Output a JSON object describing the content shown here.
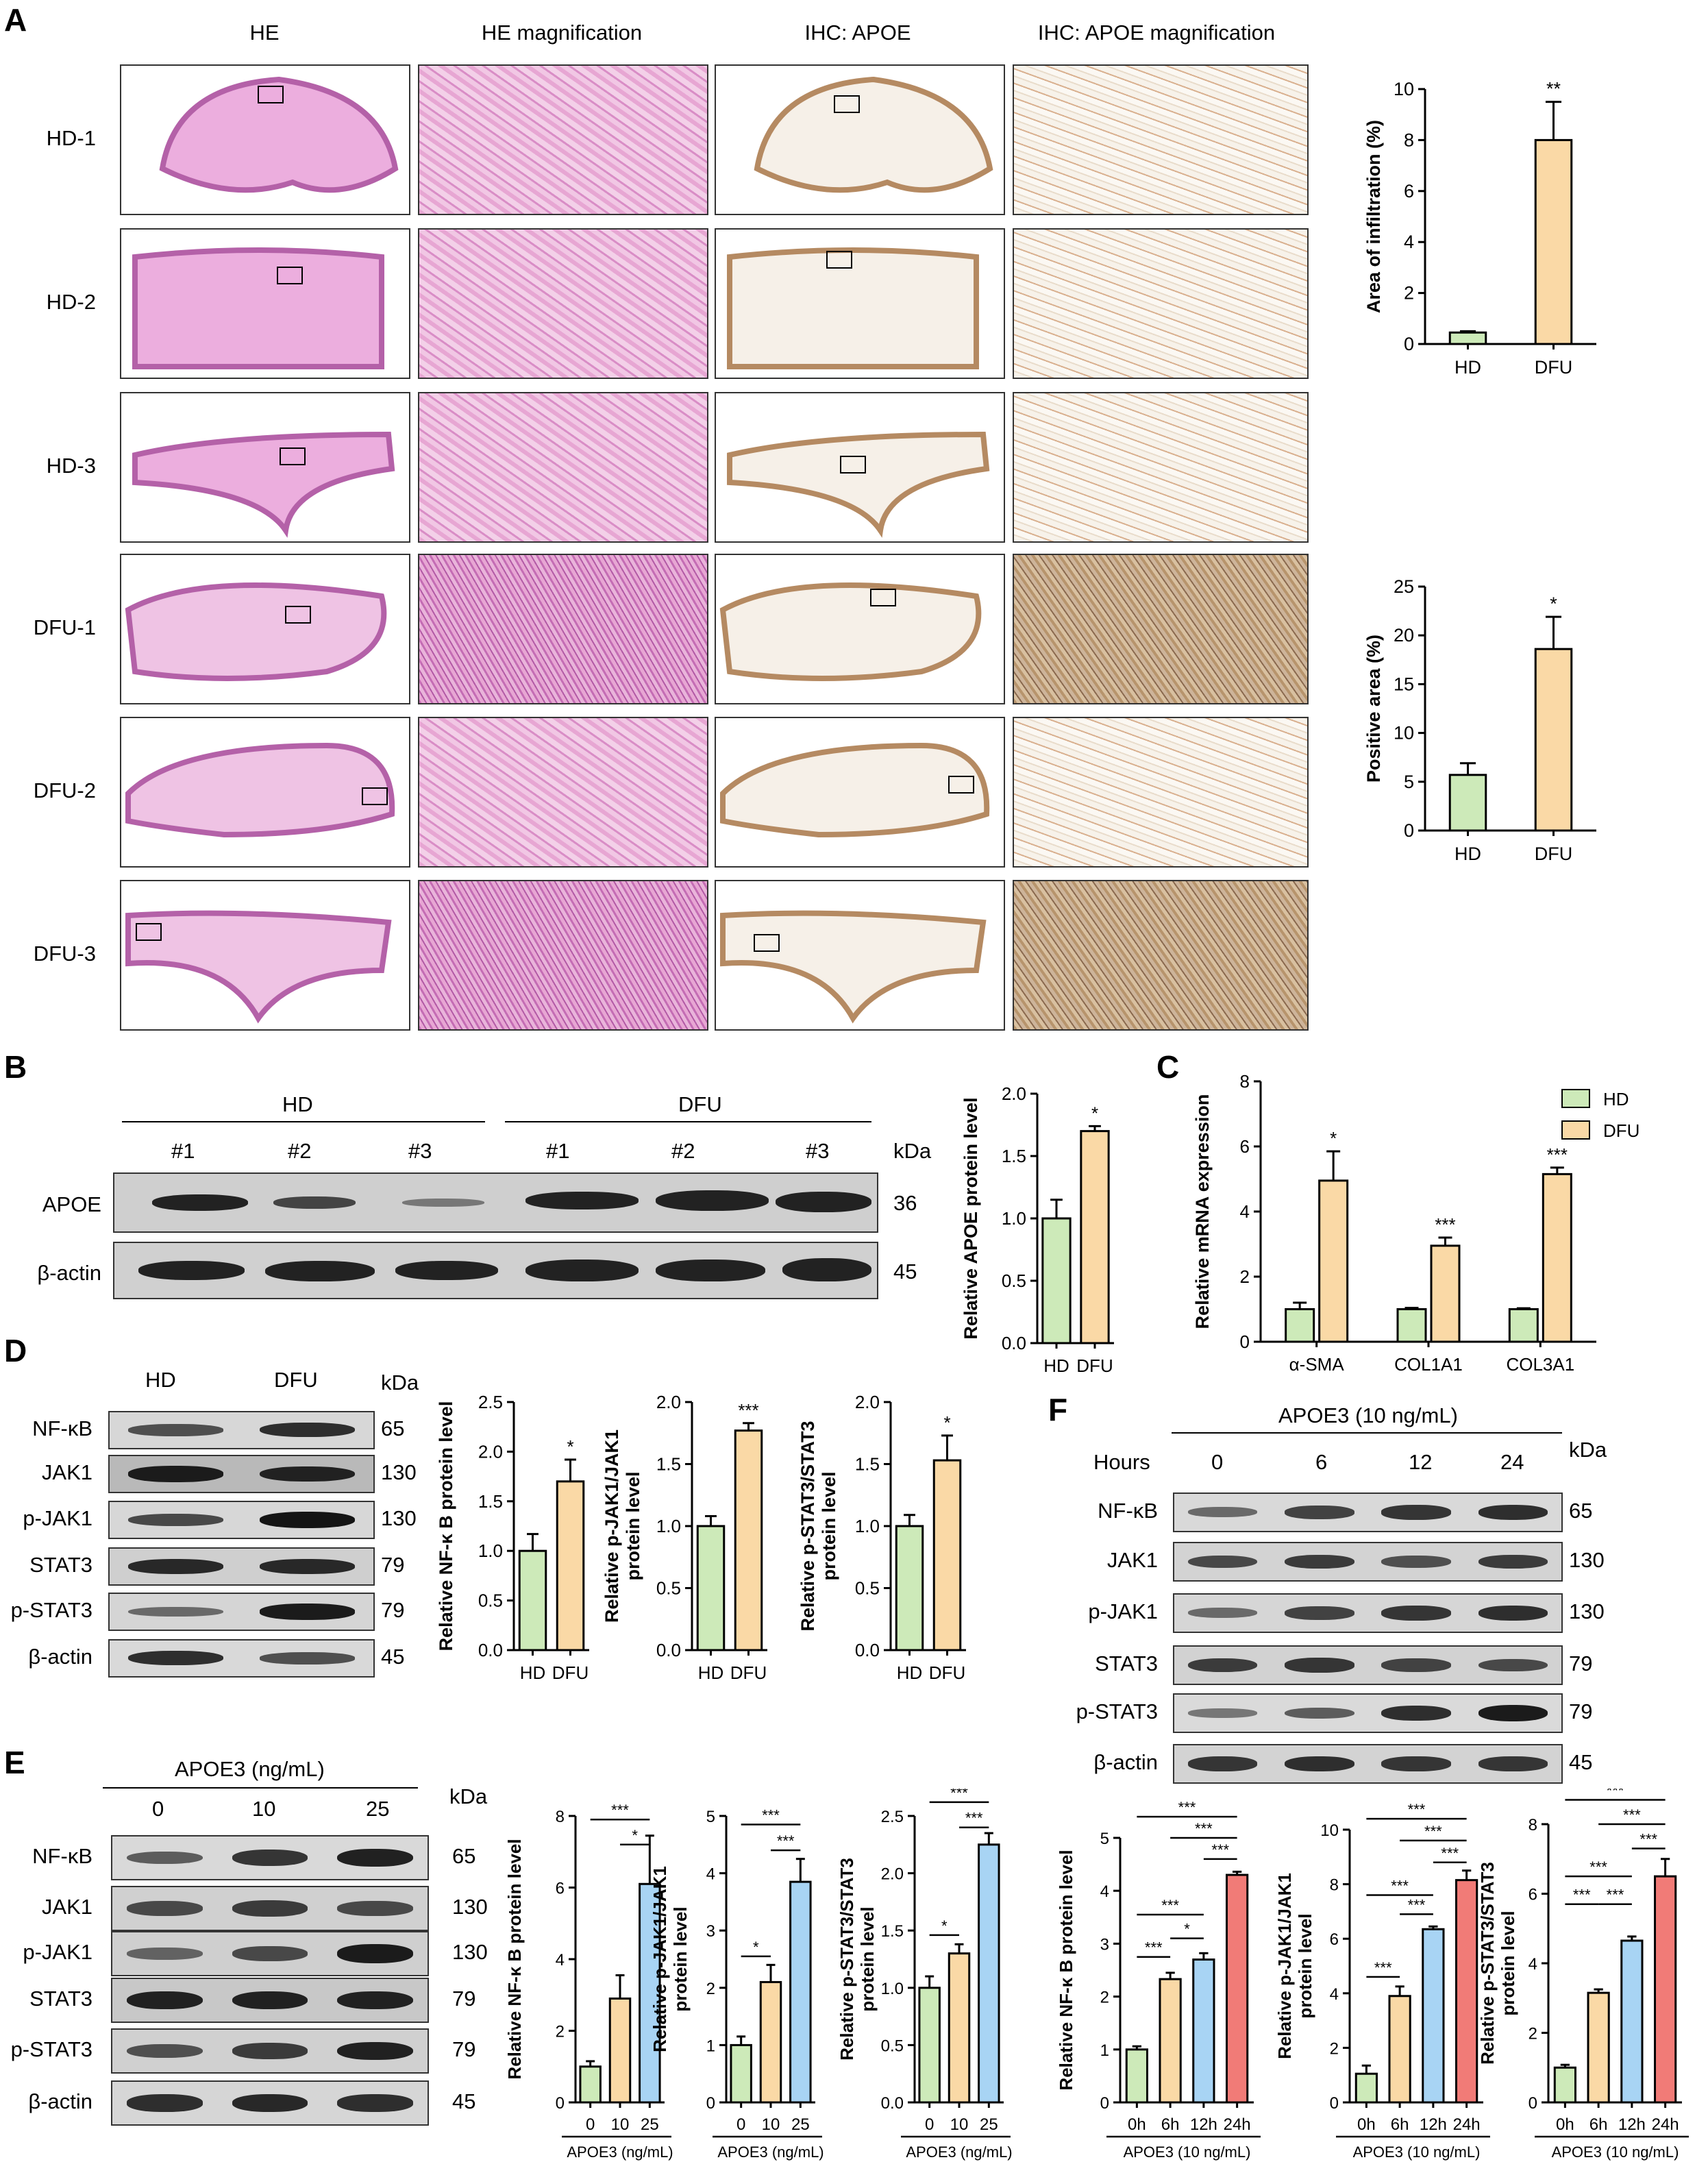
{
  "panelA": {
    "letter": "A",
    "col_titles": [
      "HE",
      "HE  magnification",
      "IHC: APOE",
      "IHC: APOE  magnification"
    ],
    "row_labels": [
      "HD-1",
      "HD-2",
      "HD-3",
      "DFU-1",
      "DFU-2",
      "DFU-3"
    ]
  },
  "panelB": {
    "letter": "B",
    "group_labels": [
      "HD",
      "DFU"
    ],
    "lanes": [
      "#1",
      "#2",
      "#3",
      "#1",
      "#2",
      "#3"
    ],
    "kda_header": "kDa",
    "rows": [
      {
        "label": "APOE",
        "kda": "36"
      },
      {
        "label": "β-actin",
        "kda": "45"
      }
    ]
  },
  "panelC": {
    "letter": "C"
  },
  "panelD": {
    "letter": "D",
    "group_labels": [
      "HD",
      "DFU"
    ],
    "kda_header": "kDa",
    "rows": [
      {
        "label": "NF-κB",
        "kda": "65"
      },
      {
        "label": "JAK1",
        "kda": "130"
      },
      {
        "label": "p-JAK1",
        "kda": "130"
      },
      {
        "label": "STAT3",
        "kda": "79"
      },
      {
        "label": "p-STAT3",
        "kda": "79"
      },
      {
        "label": "β-actin",
        "kda": "45"
      }
    ]
  },
  "panelE": {
    "letter": "E",
    "treatment": "APOE3 (ng/mL)",
    "doses": [
      "0",
      "10",
      "25"
    ],
    "kda_header": "kDa",
    "rows": [
      {
        "label": "NF-κB",
        "kda": "65"
      },
      {
        "label": "JAK1",
        "kda": "130"
      },
      {
        "label": "p-JAK1",
        "kda": "130"
      },
      {
        "label": "STAT3",
        "kda": "79"
      },
      {
        "label": "p-STAT3",
        "kda": "79"
      },
      {
        "label": "β-actin",
        "kda": "45"
      }
    ]
  },
  "panelF": {
    "letter": "F",
    "treatment": "APOE3 (10 ng/mL)",
    "hours_label": "Hours",
    "hours": [
      "0",
      "6",
      "12",
      "24"
    ],
    "kda_header": "kDa",
    "rows": [
      {
        "label": "NF-κB",
        "kda": "65"
      },
      {
        "label": "JAK1",
        "kda": "130"
      },
      {
        "label": "p-JAK1",
        "kda": "130"
      },
      {
        "label": "STAT3",
        "kda": "79"
      },
      {
        "label": "p-STAT3",
        "kda": "79"
      },
      {
        "label": "β-actin",
        "kda": "45"
      }
    ]
  },
  "colors": {
    "HD": "#cdeab9",
    "DFU": "#fad9a6",
    "dose25": "#a8d4f4",
    "h24": "#f17b77"
  },
  "chart_data": [
    {
      "id": "A-infiltration",
      "type": "bar",
      "categories": [
        "HD",
        "DFU"
      ],
      "values": [
        0.45,
        8.0
      ],
      "errors": [
        0.05,
        1.5
      ],
      "ylabel": "Area of infiltration (%)",
      "ylim": [
        0,
        10
      ],
      "yticks": [
        0,
        2,
        4,
        6,
        8,
        10
      ],
      "sig": [
        "",
        "**"
      ],
      "colors": [
        "#cdeab9",
        "#fad9a6"
      ]
    },
    {
      "id": "A-positive",
      "type": "bar",
      "categories": [
        "HD",
        "DFU"
      ],
      "values": [
        5.7,
        18.6
      ],
      "errors": [
        1.2,
        3.3
      ],
      "ylabel": "Positive area (%)",
      "ylim": [
        0,
        25
      ],
      "yticks": [
        0,
        5,
        10,
        15,
        20,
        25
      ],
      "sig": [
        "",
        "*"
      ],
      "colors": [
        "#cdeab9",
        "#fad9a6"
      ]
    },
    {
      "id": "B-apoe",
      "type": "bar",
      "categories": [
        "HD",
        "DFU"
      ],
      "values": [
        1.0,
        1.7
      ],
      "errors": [
        0.15,
        0.04
      ],
      "ylabel": "Relative APOE protein level",
      "ylim": [
        0,
        2.0
      ],
      "yticks": [
        "0.0",
        "0.5",
        "1.0",
        "1.5",
        "2.0"
      ],
      "sig": [
        "",
        "*"
      ],
      "colors": [
        "#cdeab9",
        "#fad9a6"
      ]
    },
    {
      "id": "C-mrna",
      "type": "bar",
      "categories": [
        "α-SMA",
        "COL1A1",
        "COL3A1"
      ],
      "series": [
        {
          "name": "HD",
          "values": [
            1.0,
            1.0,
            1.0
          ],
          "errors": [
            0.2,
            0.04,
            0.03
          ]
        },
        {
          "name": "DFU",
          "values": [
            4.95,
            2.95,
            5.15
          ],
          "errors": [
            0.9,
            0.25,
            0.2
          ]
        }
      ],
      "ylabel": "Relative mRNA expression",
      "ylim": [
        0,
        8
      ],
      "yticks": [
        0,
        2,
        4,
        6,
        8
      ],
      "sig": [
        "*",
        "***",
        "***"
      ],
      "colors": [
        "#cdeab9",
        "#fad9a6"
      ]
    },
    {
      "id": "D-nfkb",
      "type": "bar",
      "categories": [
        "HD",
        "DFU"
      ],
      "values": [
        1.0,
        1.7
      ],
      "errors": [
        0.17,
        0.22
      ],
      "ylabel": "Relative NF-κ B protein level",
      "ylim": [
        0,
        2.5
      ],
      "yticks": [
        "0.0",
        "0.5",
        "1.0",
        "1.5",
        "2.0",
        "2.5"
      ],
      "sig": [
        "",
        "*"
      ],
      "colors": [
        "#cdeab9",
        "#fad9a6"
      ]
    },
    {
      "id": "D-pjak1",
      "type": "bar",
      "categories": [
        "HD",
        "DFU"
      ],
      "values": [
        1.0,
        1.77
      ],
      "errors": [
        0.08,
        0.06
      ],
      "ylabel": [
        "Relative p-JAK1/JAK1",
        "protein level"
      ],
      "ylim": [
        0,
        2.0
      ],
      "yticks": [
        "0.0",
        "0.5",
        "1.0",
        "1.5",
        "2.0"
      ],
      "sig": [
        "",
        "***"
      ],
      "colors": [
        "#cdeab9",
        "#fad9a6"
      ]
    },
    {
      "id": "D-pstat3",
      "type": "bar",
      "categories": [
        "HD",
        "DFU"
      ],
      "values": [
        1.0,
        1.53
      ],
      "errors": [
        0.09,
        0.2
      ],
      "ylabel": [
        "Relative p-STAT3/STAT3",
        "protein level"
      ],
      "ylim": [
        0,
        2.0
      ],
      "yticks": [
        "0.0",
        "0.5",
        "1.0",
        "1.5",
        "2.0"
      ],
      "sig": [
        "",
        "*"
      ],
      "colors": [
        "#cdeab9",
        "#fad9a6"
      ]
    },
    {
      "id": "E-nfkb",
      "type": "bar",
      "categories": [
        "0",
        "10",
        "25"
      ],
      "values": [
        1.0,
        2.9,
        6.1
      ],
      "errors": [
        0.15,
        0.65,
        1.35
      ],
      "ylabel": "Relative NF-κ B protein level",
      "xlabel": "APOE3 (ng/mL)",
      "ylim": [
        0,
        8
      ],
      "yticks": [
        0,
        2,
        4,
        6,
        8
      ],
      "brackets": [
        {
          "from": 1,
          "to": 2,
          "level": 7.2,
          "label": "*"
        },
        {
          "from": 0,
          "to": 2,
          "level": 7.9,
          "label": "***"
        }
      ],
      "colors": [
        "#cdeab9",
        "#fad9a6",
        "#a8d4f4"
      ]
    },
    {
      "id": "E-pjak1",
      "type": "bar",
      "categories": [
        "0",
        "10",
        "25"
      ],
      "values": [
        1.0,
        2.1,
        3.85
      ],
      "errors": [
        0.15,
        0.3,
        0.4
      ],
      "ylabel": [
        "Relative p-JAK1/JAK1",
        "protein level"
      ],
      "xlabel": "APOE3 (ng/mL)",
      "ylim": [
        0,
        5
      ],
      "yticks": [
        0,
        1,
        2,
        3,
        4,
        5
      ],
      "brackets": [
        {
          "from": 0,
          "to": 1,
          "level": 2.55,
          "label": "*"
        },
        {
          "from": 1,
          "to": 2,
          "level": 4.4,
          "label": "***"
        },
        {
          "from": 0,
          "to": 2,
          "level": 4.85,
          "label": "***"
        }
      ],
      "colors": [
        "#cdeab9",
        "#fad9a6",
        "#a8d4f4"
      ]
    },
    {
      "id": "E-pstat3",
      "type": "bar",
      "categories": [
        "0",
        "10",
        "25"
      ],
      "values": [
        1.0,
        1.3,
        2.25
      ],
      "errors": [
        0.1,
        0.08,
        0.1
      ],
      "ylabel": "Relative p-STAT3/STAT3",
      "ylabel2": "protein level",
      "xlabel": "APOE3 (ng/mL)",
      "ylim": [
        0,
        2.5
      ],
      "yticks": [
        "0.0",
        "0.5",
        "1.0",
        "1.5",
        "2.0",
        "2.5"
      ],
      "brackets": [
        {
          "from": 0,
          "to": 1,
          "level": 1.46,
          "label": "*"
        },
        {
          "from": 1,
          "to": 2,
          "level": 2.4,
          "label": "***"
        },
        {
          "from": 0,
          "to": 2,
          "level": 2.62,
          "label": "***"
        }
      ],
      "colors": [
        "#cdeab9",
        "#fad9a6",
        "#a8d4f4"
      ]
    },
    {
      "id": "F-nfkb",
      "type": "bar",
      "categories": [
        "0h",
        "6h",
        "12h",
        "24h"
      ],
      "values": [
        1.0,
        2.33,
        2.7,
        4.3
      ],
      "errors": [
        0.06,
        0.12,
        0.12,
        0.06
      ],
      "ylabel": "Relative NF-κ B protein level",
      "xlabel": "APOE3 (10 ng/mL)",
      "ylim": [
        0,
        5
      ],
      "yticks": [
        0,
        1,
        2,
        3,
        4,
        5
      ],
      "brackets": [
        {
          "from": 0,
          "to": 1,
          "level": 2.75,
          "label": "***"
        },
        {
          "from": 1,
          "to": 2,
          "level": 3.1,
          "label": "*"
        },
        {
          "from": 0,
          "to": 2,
          "level": 3.55,
          "label": "***"
        },
        {
          "from": 2,
          "to": 3,
          "level": 4.6,
          "label": "***"
        },
        {
          "from": 1,
          "to": 3,
          "level": 5.0,
          "label": "***"
        },
        {
          "from": 0,
          "to": 3,
          "level": 5.4,
          "label": "***"
        }
      ],
      "colors": [
        "#cdeab9",
        "#fad9a6",
        "#a8d4f4",
        "#f17b77"
      ]
    },
    {
      "id": "F-pjak1",
      "type": "bar",
      "categories": [
        "0h",
        "6h",
        "12h",
        "24h"
      ],
      "values": [
        1.05,
        3.9,
        6.35,
        8.15
      ],
      "errors": [
        0.3,
        0.35,
        0.1,
        0.35
      ],
      "ylabel": [
        "Relative p-JAK1/JAK1",
        "protein level"
      ],
      "xlabel": "APOE3 (10 ng/mL)",
      "ylim": [
        0,
        10
      ],
      "yticks": [
        0,
        2,
        4,
        6,
        8,
        10
      ],
      "brackets": [
        {
          "from": 0,
          "to": 1,
          "level": 4.6,
          "label": "***"
        },
        {
          "from": 1,
          "to": 2,
          "level": 6.9,
          "label": "***"
        },
        {
          "from": 0,
          "to": 2,
          "level": 7.6,
          "label": "***"
        },
        {
          "from": 2,
          "to": 3,
          "level": 8.8,
          "label": "***"
        },
        {
          "from": 1,
          "to": 3,
          "level": 9.6,
          "label": "***"
        },
        {
          "from": 0,
          "to": 3,
          "level": 10.4,
          "label": "***"
        }
      ],
      "colors": [
        "#cdeab9",
        "#fad9a6",
        "#a8d4f4",
        "#f17b77"
      ]
    },
    {
      "id": "F-pstat3",
      "type": "bar",
      "categories": [
        "0h",
        "6h",
        "12h",
        "24h"
      ],
      "values": [
        1.0,
        3.15,
        4.65,
        6.5
      ],
      "errors": [
        0.08,
        0.1,
        0.12,
        0.5
      ],
      "ylabel": [
        "Relative p-STAT3/STAT3",
        "protein level"
      ],
      "xlabel": "APOE3 (10 ng/mL)",
      "ylim": [
        0,
        8
      ],
      "yticks": [
        0,
        2,
        4,
        6,
        8
      ],
      "brackets": [
        {
          "from": 0,
          "to": 1,
          "level": 5.7,
          "label": "***"
        },
        {
          "from": 1,
          "to": 2,
          "level": 5.7,
          "label": "***"
        },
        {
          "from": 0,
          "to": 2,
          "level": 6.5,
          "label": "***"
        },
        {
          "from": 2,
          "to": 3,
          "level": 7.3,
          "label": "***"
        },
        {
          "from": 1,
          "to": 3,
          "level": 8.0,
          "label": "***"
        },
        {
          "from": 0,
          "to": 3,
          "level": 8.7,
          "label": "***"
        }
      ],
      "colors": [
        "#cdeab9",
        "#fad9a6",
        "#a8d4f4",
        "#f17b77"
      ]
    }
  ]
}
